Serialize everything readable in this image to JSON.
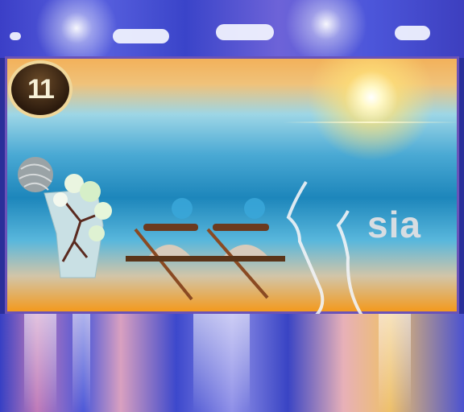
{
  "badge": {
    "text": "11"
  },
  "brand": {
    "text": "sia"
  },
  "colors": {
    "frame_border": "#6a52b8",
    "sky_blue": "#3b3fc7",
    "sunset_orange": "#f39a1e"
  },
  "icons": [
    "sun-icon",
    "yarn-ball-icon",
    "flower-vase-icon",
    "bench-icon",
    "face-profile-line-icon"
  ]
}
